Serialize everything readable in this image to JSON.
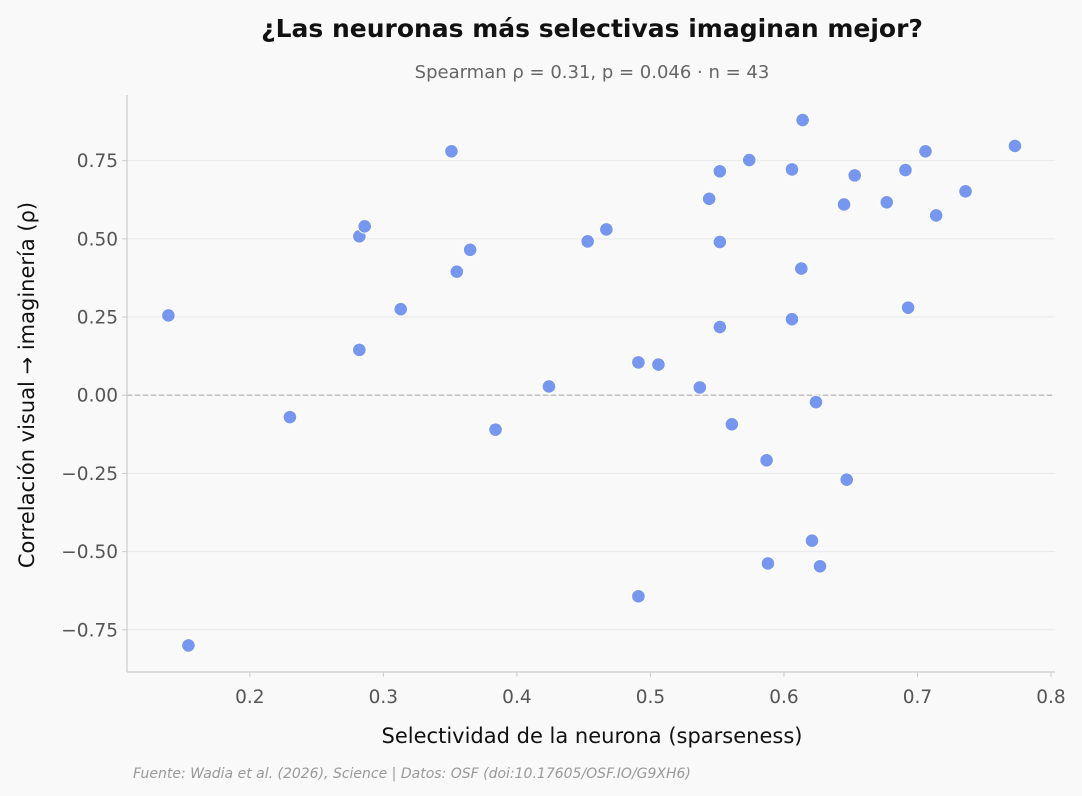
{
  "chart_data": {
    "type": "scatter",
    "title": "¿Las neuronas más selectivas imaginan mejor?",
    "subtitle": "Spearman ρ = 0.31, p = 0.046 · n = 43",
    "xlabel": "Selectividad de la neurona (sparseness)",
    "ylabel": "Correlación visual → imaginería (ρ)",
    "source": "Fuente: Wadia et al. (2026), Science | Datos: OSF (doi:10.17605/OSF.IO/G9XH6)",
    "xlim": [
      0.108,
      0.803
    ],
    "ylim": [
      -0.885,
      0.96
    ],
    "xticks": [
      0.2,
      0.3,
      0.4,
      0.5,
      0.6,
      0.7,
      0.8
    ],
    "xtick_labels": [
      "0.2",
      "0.3",
      "0.4",
      "0.5",
      "0.6",
      "0.7",
      "0.8"
    ],
    "yticks": [
      -0.75,
      -0.5,
      -0.25,
      0.0,
      0.25,
      0.5,
      0.75
    ],
    "ytick_labels": [
      "−0.75",
      "−0.50",
      "−0.25",
      "0.00",
      "0.25",
      "0.50",
      "0.75"
    ],
    "grid": "horizontal",
    "reference_line_y": 0,
    "point_color": "#6b8eed",
    "points": [
      {
        "x": 0.139,
        "y": 0.255
      },
      {
        "x": 0.154,
        "y": -0.8
      },
      {
        "x": 0.23,
        "y": -0.07
      },
      {
        "x": 0.282,
        "y": 0.508
      },
      {
        "x": 0.286,
        "y": 0.54
      },
      {
        "x": 0.282,
        "y": 0.145
      },
      {
        "x": 0.313,
        "y": 0.275
      },
      {
        "x": 0.351,
        "y": 0.78
      },
      {
        "x": 0.355,
        "y": 0.395
      },
      {
        "x": 0.365,
        "y": 0.465
      },
      {
        "x": 0.384,
        "y": -0.11
      },
      {
        "x": 0.424,
        "y": 0.028
      },
      {
        "x": 0.453,
        "y": 0.492
      },
      {
        "x": 0.467,
        "y": 0.53
      },
      {
        "x": 0.491,
        "y": 0.105
      },
      {
        "x": 0.491,
        "y": -0.643
      },
      {
        "x": 0.506,
        "y": 0.098
      },
      {
        "x": 0.537,
        "y": 0.025
      },
      {
        "x": 0.544,
        "y": 0.628
      },
      {
        "x": 0.552,
        "y": 0.716
      },
      {
        "x": 0.552,
        "y": 0.49
      },
      {
        "x": 0.552,
        "y": 0.218
      },
      {
        "x": 0.561,
        "y": -0.093
      },
      {
        "x": 0.574,
        "y": 0.752
      },
      {
        "x": 0.587,
        "y": -0.208
      },
      {
        "x": 0.588,
        "y": -0.538
      },
      {
        "x": 0.606,
        "y": 0.722
      },
      {
        "x": 0.606,
        "y": 0.243
      },
      {
        "x": 0.613,
        "y": 0.405
      },
      {
        "x": 0.614,
        "y": 0.88
      },
      {
        "x": 0.621,
        "y": -0.465
      },
      {
        "x": 0.624,
        "y": -0.022
      },
      {
        "x": 0.627,
        "y": -0.547
      },
      {
        "x": 0.645,
        "y": 0.61
      },
      {
        "x": 0.647,
        "y": -0.27
      },
      {
        "x": 0.653,
        "y": 0.703
      },
      {
        "x": 0.677,
        "y": 0.617
      },
      {
        "x": 0.691,
        "y": 0.72
      },
      {
        "x": 0.693,
        "y": 0.28
      },
      {
        "x": 0.706,
        "y": 0.78
      },
      {
        "x": 0.714,
        "y": 0.575
      },
      {
        "x": 0.736,
        "y": 0.652
      },
      {
        "x": 0.773,
        "y": 0.797
      }
    ]
  }
}
